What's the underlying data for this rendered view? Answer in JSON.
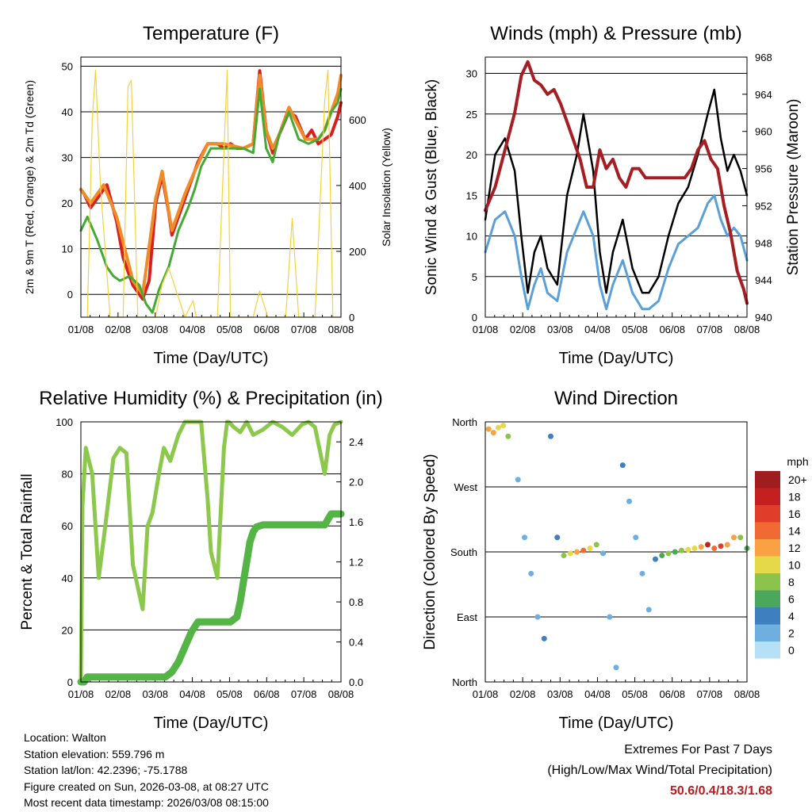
{
  "colors": {
    "temp_red": "#d62020",
    "temp_orange": "#f08c28",
    "dew_green": "#44aa33",
    "solar_yellow": "#f5d23c",
    "gust_black": "#000000",
    "wind_blue": "#5aa0d8",
    "pressure_maroon": "#a51e23",
    "rh_lightgreen": "#8cc84b",
    "precip_green": "#55b446",
    "extremes_red": "#b41e23"
  },
  "chart_data": [
    {
      "type": "line",
      "title": "Temperature (F)",
      "xlabel": "Time (Day/UTC)",
      "ylabel": "2m & 9m T (Red, Orange) & 2m Td (Green)",
      "y2label": "Solar Insolation (Yellow)",
      "x_ticks": [
        "01/08",
        "02/08",
        "03/08",
        "04/08",
        "05/08",
        "06/08",
        "07/08",
        "08/08"
      ],
      "ylim": [
        -5,
        52
      ],
      "y_ticks": [
        0,
        10,
        20,
        30,
        40,
        50
      ],
      "y2lim": [
        0,
        790
      ],
      "y2_ticks": [
        0,
        200,
        400,
        600
      ],
      "grid": true,
      "series": [
        {
          "name": "2m T",
          "color": "#d62020",
          "x": [
            0,
            0.1,
            0.3,
            0.5,
            0.7,
            0.8,
            1.1,
            1.3,
            1.6,
            1.9,
            2.1,
            2.3,
            2.5,
            2.7,
            2.8,
            3.0,
            3.2,
            3.35,
            3.5,
            3.6,
            3.75,
            3.9,
            4.2,
            4.4,
            4.6,
            4.8,
            5.0,
            5.3,
            5.5,
            5.7,
            5.9,
            6.1,
            6.4,
            6.6,
            6.9,
            7.1,
            7.3,
            7.5,
            7.7,
            7.9,
            8.0
          ],
          "y": [
            23,
            22,
            19,
            21,
            23,
            24,
            16,
            8,
            2,
            -1,
            3,
            20,
            26,
            18,
            13,
            17,
            21,
            24,
            27,
            29,
            31,
            33,
            33,
            32,
            33,
            32,
            32,
            33,
            49,
            36,
            31,
            35,
            40,
            39,
            34,
            36,
            33,
            34,
            35,
            39,
            42
          ]
        },
        {
          "name": "9m T",
          "color": "#f08c28",
          "x": [
            0,
            0.3,
            0.7,
            1.1,
            1.6,
            1.9,
            2.3,
            2.5,
            2.8,
            3.2,
            3.5,
            3.9,
            4.4,
            5.0,
            5.3,
            5.5,
            5.7,
            5.9,
            6.1,
            6.4,
            6.9,
            7.3,
            7.5,
            7.7,
            7.9,
            8.0
          ],
          "y": [
            23,
            20,
            24,
            17,
            3,
            0,
            21,
            27,
            14,
            22,
            27,
            33,
            33,
            32,
            33,
            48,
            36,
            32,
            35,
            41,
            34,
            34,
            36,
            40,
            44,
            48
          ]
        },
        {
          "name": "2m Td",
          "color": "#44aa33",
          "x": [
            0,
            0.2,
            0.5,
            0.8,
            1.0,
            1.2,
            1.5,
            1.8,
            2.0,
            2.2,
            2.4,
            2.7,
            3.0,
            3.3,
            3.5,
            3.7,
            4.0,
            4.4,
            4.6,
            5.0,
            5.3,
            5.5,
            5.7,
            5.9,
            6.1,
            6.4,
            6.7,
            7.0,
            7.3,
            7.5,
            7.7,
            7.9,
            8.0
          ],
          "y": [
            14,
            17,
            12,
            6,
            4,
            3,
            4,
            2,
            -2,
            -4,
            1,
            6,
            14,
            19,
            23,
            28,
            32,
            32,
            32,
            32,
            31,
            45,
            32,
            29,
            35,
            40,
            34,
            33,
            34,
            36,
            40,
            42,
            45
          ]
        },
        {
          "name": "Solar Insolation",
          "color": "#f5d23c",
          "axis": "y2",
          "x": [
            0.2,
            0.35,
            0.45,
            0.6,
            0.9,
            1.3,
            1.45,
            1.55,
            1.75,
            2.0,
            2.3,
            2.5,
            2.7,
            3.2,
            3.45,
            3.55,
            3.75,
            4.0,
            4.2,
            4.5,
            4.6,
            4.75,
            5.0,
            5.3,
            5.5,
            5.75,
            6.0,
            6.3,
            6.5,
            6.7,
            7.0,
            7.2,
            7.5,
            7.6,
            7.75,
            8.0
          ],
          "y": [
            0,
            600,
            750,
            400,
            0,
            0,
            700,
            720,
            0,
            0,
            0,
            100,
            150,
            0,
            50,
            0,
            0,
            0,
            0,
            750,
            0,
            0,
            0,
            0,
            80,
            0,
            0,
            0,
            300,
            0,
            0,
            0,
            660,
            750,
            0,
            0
          ]
        }
      ]
    },
    {
      "type": "line",
      "title": "Winds (mph) & Pressure (mb)",
      "xlabel": "Time (Day/UTC)",
      "ylabel": "Sonic Wind & Gust (Blue, Black)",
      "y2label": "Station Pressure (Maroon)",
      "x_ticks": [
        "01/08",
        "02/08",
        "03/08",
        "04/08",
        "05/08",
        "06/08",
        "07/08",
        "08/08"
      ],
      "ylim": [
        0,
        32
      ],
      "y_ticks": [
        0,
        5,
        10,
        15,
        20,
        25,
        30
      ],
      "y2lim": [
        940,
        968
      ],
      "y2_ticks": [
        940,
        944,
        948,
        952,
        956,
        960,
        964,
        968
      ],
      "grid": true,
      "series": [
        {
          "name": "Gust",
          "color": "#000000",
          "x": [
            0,
            0.3,
            0.6,
            0.9,
            1.1,
            1.3,
            1.5,
            1.7,
            1.9,
            2.2,
            2.5,
            2.8,
            3.0,
            3.3,
            3.5,
            3.7,
            3.9,
            4.2,
            4.5,
            4.8,
            5.0,
            5.3,
            5.6,
            5.9,
            6.2,
            6.5,
            6.8,
            7.0,
            7.2,
            7.4,
            7.6,
            7.8,
            8.0
          ],
          "y": [
            12,
            20,
            22,
            18,
            10,
            3,
            8,
            10,
            6,
            4,
            15,
            20,
            25,
            18,
            8,
            3,
            8,
            12,
            6,
            3,
            3,
            5,
            10,
            14,
            16,
            20,
            25,
            28,
            22,
            18,
            20,
            18,
            15
          ]
        },
        {
          "name": "Wind",
          "color": "#5aa0d8",
          "x": [
            0,
            0.3,
            0.6,
            0.9,
            1.1,
            1.3,
            1.5,
            1.7,
            1.9,
            2.2,
            2.5,
            2.8,
            3.0,
            3.3,
            3.5,
            3.7,
            3.9,
            4.2,
            4.5,
            4.8,
            5.0,
            5.3,
            5.6,
            5.9,
            6.2,
            6.5,
            6.8,
            7.0,
            7.2,
            7.4,
            7.6,
            7.8,
            8.0
          ],
          "y": [
            8,
            12,
            13,
            10,
            5,
            1,
            4,
            6,
            3,
            2,
            8,
            11,
            13,
            10,
            4,
            1,
            4,
            7,
            3,
            1,
            1,
            2,
            6,
            9,
            10,
            11,
            14,
            15,
            12,
            10,
            11,
            10,
            7
          ]
        },
        {
          "name": "Pressure",
          "color": "#a51e23",
          "axis": "y2",
          "x": [
            0,
            0.3,
            0.6,
            0.9,
            1.1,
            1.3,
            1.5,
            1.7,
            1.9,
            2.1,
            2.3,
            2.6,
            2.9,
            3.1,
            3.3,
            3.5,
            3.7,
            3.9,
            4.1,
            4.3,
            4.5,
            4.7,
            4.9,
            5.1,
            5.3,
            5.5,
            5.8,
            6.1,
            6.3,
            6.5,
            6.7,
            6.9,
            7.1,
            7.3,
            7.5,
            7.7,
            7.9,
            8.0
          ],
          "y": [
            951.5,
            954,
            958,
            962,
            966,
            967.5,
            965.5,
            965,
            964,
            964.5,
            963,
            960,
            957,
            954,
            954,
            958,
            956,
            957,
            955,
            954,
            956,
            956,
            955,
            955,
            955,
            955,
            955,
            955,
            956,
            958,
            959,
            957,
            956,
            952,
            949,
            945,
            943,
            941.5
          ]
        }
      ]
    },
    {
      "type": "line",
      "title": "Relative Humidity (%) & Precipitation (in)",
      "xlabel": "Time (Day/UTC)",
      "ylabel": "Percent & Total Rainfall",
      "x_ticks": [
        "01/08",
        "02/08",
        "03/08",
        "04/08",
        "05/08",
        "06/08",
        "07/08",
        "08/08"
      ],
      "ylim": [
        0,
        100
      ],
      "y_ticks": [
        0,
        20,
        40,
        60,
        80,
        100
      ],
      "y2lim": [
        0,
        2.6
      ],
      "y2_ticks": [
        "0.0",
        "0.4",
        "0.8",
        "1.2",
        "1.6",
        "2.0",
        "2.4"
      ],
      "grid": true,
      "series": [
        {
          "name": "RH",
          "color": "#8cc84b",
          "x": [
            0,
            0.05,
            0.15,
            0.35,
            0.55,
            0.75,
            1.0,
            1.2,
            1.4,
            1.6,
            1.9,
            2.05,
            2.2,
            2.4,
            2.55,
            2.75,
            3.0,
            3.2,
            3.5,
            3.7,
            3.9,
            4.0,
            4.2,
            4.4,
            4.5,
            4.55,
            4.7,
            4.9,
            5.1,
            5.3,
            5.6,
            5.9,
            6.2,
            6.5,
            6.8,
            7.0,
            7.2,
            7.5,
            7.65,
            7.8,
            8.0
          ],
          "y": [
            0,
            68,
            90,
            80,
            40,
            60,
            86,
            90,
            88,
            45,
            28,
            60,
            65,
            80,
            90,
            85,
            95,
            100,
            100,
            100,
            70,
            50,
            40,
            90,
            100,
            100,
            98,
            96,
            100,
            95,
            97,
            100,
            98,
            95,
            99,
            100,
            98,
            80,
            95,
            99,
            100
          ]
        },
        {
          "name": "Total Precip",
          "color": "#55b446",
          "axis": "y2",
          "x": [
            0,
            0.1,
            0.2,
            2.6,
            2.8,
            3.0,
            3.2,
            3.4,
            3.6,
            4.0,
            4.4,
            4.6,
            4.8,
            4.9,
            5.0,
            5.1,
            5.2,
            5.3,
            5.4,
            5.6,
            5.8,
            6.0,
            6.4,
            7.0,
            7.5,
            7.7,
            7.8,
            8.0
          ],
          "y": [
            0,
            0,
            0.05,
            0.05,
            0.1,
            0.2,
            0.35,
            0.5,
            0.6,
            0.6,
            0.6,
            0.6,
            0.65,
            0.8,
            1.0,
            1.2,
            1.4,
            1.5,
            1.55,
            1.57,
            1.57,
            1.57,
            1.57,
            1.57,
            1.57,
            1.68,
            1.68,
            1.68
          ]
        }
      ]
    },
    {
      "type": "scatter",
      "title": "Wind Direction",
      "xlabel": "Time (Day/UTC)",
      "ylabel": "Direction (Colored By Speed)",
      "x_ticks": [
        "01/08",
        "02/08",
        "03/08",
        "04/08",
        "05/08",
        "06/08",
        "07/08",
        "08/08"
      ],
      "y_ticks": [
        "North",
        "East",
        "South",
        "West",
        "North"
      ],
      "legend_title": "mph",
      "legend_labels": [
        "20+",
        "18",
        "16",
        "14",
        "12",
        "10",
        "8",
        "6",
        "4",
        "2",
        "0"
      ],
      "legend_colors": [
        "#9f1c1f",
        "#c4201f",
        "#e03d2a",
        "#f06a33",
        "#f9a244",
        "#e5d94a",
        "#8cc44b",
        "#4aa75b",
        "#3d7fbf",
        "#6fafe0",
        "#b6e0f5"
      ],
      "series": [
        {
          "name": "Direction",
          "x": [
            0.1,
            0.25,
            0.4,
            0.55,
            0.7,
            1.0,
            1.2,
            1.4,
            1.6,
            1.8,
            2.0,
            2.2,
            2.4,
            2.6,
            2.8,
            3.0,
            3.2,
            3.4,
            3.6,
            3.8,
            4.0,
            4.2,
            4.4,
            4.6,
            4.8,
            5.0,
            5.2,
            5.4,
            5.6,
            5.8,
            6.0,
            6.2,
            6.4,
            6.6,
            6.8,
            7.0,
            7.2,
            7.4,
            7.6,
            7.8,
            8.0
          ],
          "y": [
            350,
            345,
            352,
            355,
            340,
            280,
            200,
            150,
            90,
            60,
            340,
            200,
            175,
            178,
            180,
            182,
            185,
            190,
            178,
            90,
            20,
            300,
            250,
            200,
            150,
            100,
            170,
            175,
            178,
            180,
            182,
            183,
            185,
            187,
            190,
            185,
            188,
            190,
            200,
            200,
            185
          ],
          "speed": [
            11,
            12,
            10,
            9,
            7,
            2,
            1,
            1,
            2,
            4,
            3,
            3,
            7,
            9,
            11,
            13,
            10,
            7,
            2,
            1,
            2,
            3,
            1,
            2,
            1,
            2,
            4,
            5,
            7,
            6,
            8,
            9,
            10,
            12,
            17,
            14,
            16,
            12,
            11,
            8,
            6
          ]
        }
      ]
    }
  ],
  "info": {
    "location": "Location: Walton",
    "elevation": "Station elevation: 559.796 m",
    "latlon": "Station lat/lon: 42.2396; -75.1788",
    "created": "Figure created on Sun, 2026-03-08, at 08:27 UTC",
    "recent": "Most recent data timestamp: 2026/03/08 08:15:00"
  },
  "extremes": {
    "title": "Extremes For Past 7 Days",
    "subtitle": "(High/Low/Max Wind/Total Precipitation)",
    "values": "50.6/0.4/18.3/1.68"
  }
}
